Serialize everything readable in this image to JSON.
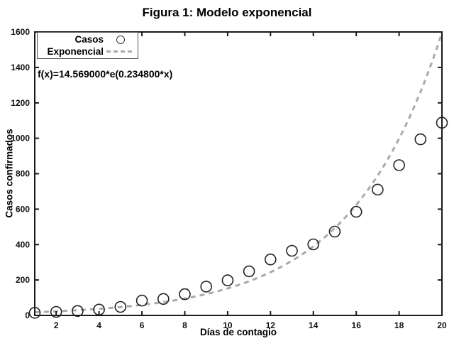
{
  "figure": {
    "title": "Figura 1: Modelo exponencial",
    "x_axis_label": "Días de contagio",
    "y_axis_label": "Casos confirmados",
    "annotation": "f(x)=14.569000*e(0.234800*x)"
  },
  "legend": {
    "items": [
      {
        "label": "Casos",
        "marker": "open-circle-icon"
      },
      {
        "label": "Exponencial",
        "marker": "gray-dashed-line-icon"
      }
    ]
  },
  "colors": {
    "axis": "#1a1a1a",
    "marker_stroke": "#222222",
    "fit_line": "#aaaaaa",
    "background": "#ffffff",
    "text": "#000000"
  },
  "chart_data": {
    "type": "scatter",
    "title": "Figura 1: Modelo exponencial",
    "xlabel": "Días de contagio",
    "ylabel": "Casos confirmados",
    "xlim": [
      1,
      20
    ],
    "ylim": [
      0,
      1600
    ],
    "x_ticks": [
      2,
      4,
      6,
      8,
      10,
      12,
      14,
      16,
      18,
      20
    ],
    "y_ticks": [
      0,
      200,
      400,
      600,
      800,
      1000,
      1200,
      1400,
      1600
    ],
    "grid": false,
    "legend_position": "top-left",
    "annotation": "f(x)=14.569000*e(0.234800*x)",
    "series": [
      {
        "name": "Casos",
        "type": "scatter",
        "marker": "open-circle",
        "x": [
          1,
          2,
          3,
          4,
          5,
          6,
          7,
          8,
          9,
          10,
          11,
          12,
          13,
          14,
          15,
          16,
          17,
          18,
          19,
          20
        ],
        "y": [
          15,
          20,
          25,
          33,
          48,
          84,
          93,
          120,
          163,
          198,
          249,
          316,
          365,
          401,
          473,
          585,
          710,
          848,
          994,
          1088
        ]
      },
      {
        "name": "Exponencial",
        "type": "line",
        "style": "dashed",
        "color": "#aaaaaa",
        "formula": "f(x)=14.569000*e(0.234800*x)",
        "coefficients": {
          "a": 14.569,
          "b": 0.2348
        }
      }
    ]
  }
}
